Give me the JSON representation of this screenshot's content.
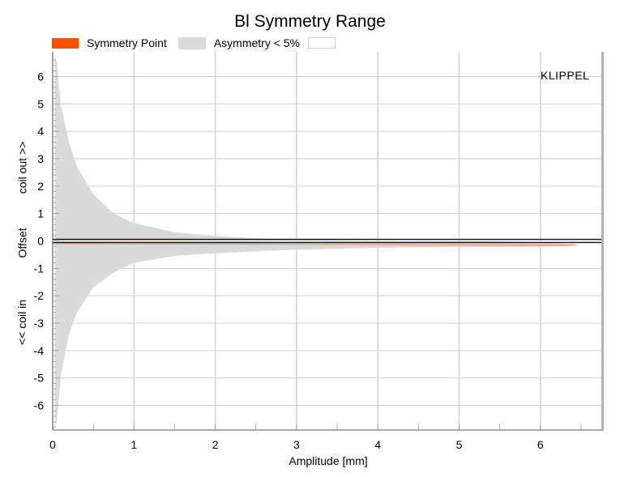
{
  "chart_data": {
    "type": "area",
    "title": "Bl Symmetry Range",
    "xlabel": "Amplitude [mm]",
    "ylabel": "Offset",
    "ylabel_upper": "coil out >>",
    "ylabel_lower": "<< coil in",
    "watermark": "KLIPPEL",
    "xlim": [
      0,
      6.75
    ],
    "ylim": [
      -6.9,
      6.9
    ],
    "xticks": [
      0,
      1,
      2,
      3,
      4,
      5,
      6
    ],
    "yticks": [
      -6,
      -5,
      -4,
      -3,
      -2,
      -1,
      0,
      1,
      2,
      3,
      4,
      5,
      6
    ],
    "grid": true,
    "legend": {
      "position": "top-left",
      "entries": [
        {
          "label": "Symmetry Point",
          "color": "#ff4f00"
        },
        {
          "label": "Asymmetry < 5%",
          "color": "#dadada"
        },
        {
          "label": "",
          "color": "#ffffff"
        }
      ]
    },
    "series": [
      {
        "name": "Asymmetry < 5%",
        "kind": "band",
        "color": "#dadada",
        "x": [
          0.03,
          0.05,
          0.1,
          0.2,
          0.3,
          0.5,
          0.75,
          1.0,
          1.5,
          2.0,
          2.5,
          3.0,
          4.0,
          5.0,
          6.0,
          6.3,
          6.45
        ],
        "upper": [
          6.8,
          6.5,
          5.0,
          3.6,
          2.7,
          1.7,
          1.0,
          0.65,
          0.32,
          0.18,
          0.1,
          0.06,
          0.02,
          0.0,
          -0.05,
          -0.1,
          -0.12
        ],
        "lower": [
          -6.8,
          -6.6,
          -4.9,
          -3.4,
          -2.6,
          -1.7,
          -1.15,
          -0.8,
          -0.55,
          -0.45,
          -0.38,
          -0.32,
          -0.25,
          -0.22,
          -0.22,
          -0.2,
          -0.13
        ]
      },
      {
        "name": "Symmetry Point",
        "kind": "line",
        "color": "#ff4f00",
        "x": [
          0.0,
          6.45
        ],
        "values": [
          -0.1,
          -0.15
        ]
      }
    ],
    "reference_lines": [
      {
        "y": 0.06,
        "color": "#000000"
      },
      {
        "y": -0.06,
        "color": "#000000"
      }
    ]
  }
}
